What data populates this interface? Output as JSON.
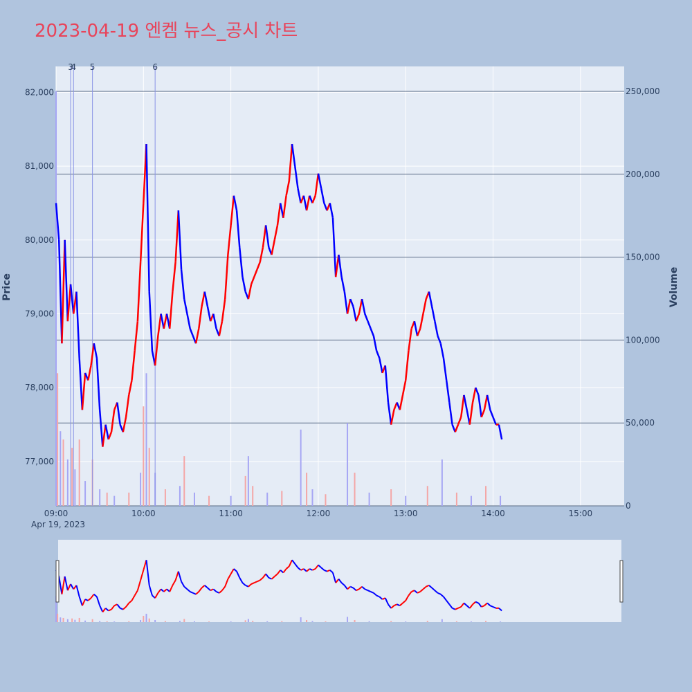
{
  "title": "2023-04-19 엔켐 뉴스_공시 차트",
  "colors": {
    "background": "#b0c4de",
    "plot_bg": "#e5ecf6",
    "up": "#ff0000",
    "down": "#0000ff",
    "title": "#e8445a",
    "volume_up": "#f4a6a6",
    "volume_down": "#a6a6f4"
  },
  "chart_data": {
    "type": "candlestick",
    "date_label": "Apr 19, 2023",
    "y_label": "Price",
    "y2_label": "Volume",
    "ylim": [
      76400,
      82350
    ],
    "y2lim": [
      0,
      265000
    ],
    "y_ticks": [
      77000,
      78000,
      79000,
      80000,
      81000,
      82000
    ],
    "y_tick_labels": [
      "77,000",
      "78,000",
      "79,000",
      "80,000",
      "81,000",
      "82,000"
    ],
    "y2_ticks": [
      0,
      50000,
      100000,
      150000,
      200000,
      250000
    ],
    "y2_tick_labels": [
      "0",
      "50,000",
      "100,000",
      "150,000",
      "200,000",
      "250,000"
    ],
    "x_ticks": [
      "09:00",
      "10:00",
      "11:00",
      "12:00",
      "13:00",
      "14:00",
      "15:00"
    ],
    "news_markers": [
      {
        "label": "3",
        "time": "09:10"
      },
      {
        "label": "4",
        "time": "09:12"
      },
      {
        "label": "5",
        "time": "09:25"
      },
      {
        "label": "6",
        "time": "10:08"
      }
    ],
    "price_path": [
      [
        "09:00",
        80500
      ],
      [
        "09:02",
        80000
      ],
      [
        "09:04",
        78600
      ],
      [
        "09:06",
        80000
      ],
      [
        "09:08",
        78900
      ],
      [
        "09:10",
        79400
      ],
      [
        "09:12",
        79000
      ],
      [
        "09:14",
        79300
      ],
      [
        "09:16",
        78400
      ],
      [
        "09:18",
        77700
      ],
      [
        "09:20",
        78200
      ],
      [
        "09:22",
        78100
      ],
      [
        "09:24",
        78300
      ],
      [
        "09:26",
        78600
      ],
      [
        "09:28",
        78400
      ],
      [
        "09:30",
        77700
      ],
      [
        "09:32",
        77200
      ],
      [
        "09:34",
        77500
      ],
      [
        "09:36",
        77300
      ],
      [
        "09:38",
        77400
      ],
      [
        "09:40",
        77700
      ],
      [
        "09:42",
        77800
      ],
      [
        "09:44",
        77500
      ],
      [
        "09:46",
        77400
      ],
      [
        "09:48",
        77600
      ],
      [
        "09:50",
        77900
      ],
      [
        "09:52",
        78100
      ],
      [
        "09:54",
        78500
      ],
      [
        "09:56",
        78900
      ],
      [
        "09:58",
        79700
      ],
      [
        "10:00",
        80500
      ],
      [
        "10:02",
        81300
      ],
      [
        "10:04",
        79300
      ],
      [
        "10:06",
        78500
      ],
      [
        "10:08",
        78300
      ],
      [
        "10:10",
        78700
      ],
      [
        "10:12",
        79000
      ],
      [
        "10:14",
        78800
      ],
      [
        "10:16",
        79000
      ],
      [
        "10:18",
        78800
      ],
      [
        "10:20",
        79300
      ],
      [
        "10:22",
        79700
      ],
      [
        "10:24",
        80400
      ],
      [
        "10:26",
        79600
      ],
      [
        "10:28",
        79200
      ],
      [
        "10:30",
        79000
      ],
      [
        "10:32",
        78800
      ],
      [
        "10:34",
        78700
      ],
      [
        "10:36",
        78600
      ],
      [
        "10:38",
        78800
      ],
      [
        "10:40",
        79100
      ],
      [
        "10:42",
        79300
      ],
      [
        "10:44",
        79100
      ],
      [
        "10:46",
        78900
      ],
      [
        "10:48",
        79000
      ],
      [
        "10:50",
        78800
      ],
      [
        "10:52",
        78700
      ],
      [
        "10:54",
        78900
      ],
      [
        "10:56",
        79200
      ],
      [
        "10:58",
        79800
      ],
      [
        "11:00",
        80200
      ],
      [
        "11:02",
        80600
      ],
      [
        "11:04",
        80400
      ],
      [
        "11:06",
        79900
      ],
      [
        "11:08",
        79500
      ],
      [
        "11:10",
        79300
      ],
      [
        "11:12",
        79200
      ],
      [
        "11:14",
        79400
      ],
      [
        "11:16",
        79500
      ],
      [
        "11:18",
        79600
      ],
      [
        "11:20",
        79700
      ],
      [
        "11:22",
        79900
      ],
      [
        "11:24",
        80200
      ],
      [
        "11:26",
        79900
      ],
      [
        "11:28",
        79800
      ],
      [
        "11:30",
        80000
      ],
      [
        "11:32",
        80200
      ],
      [
        "11:34",
        80500
      ],
      [
        "11:36",
        80300
      ],
      [
        "11:38",
        80600
      ],
      [
        "11:40",
        80800
      ],
      [
        "11:42",
        81300
      ],
      [
        "11:44",
        81000
      ],
      [
        "11:46",
        80700
      ],
      [
        "11:48",
        80500
      ],
      [
        "11:50",
        80600
      ],
      [
        "11:52",
        80400
      ],
      [
        "11:54",
        80600
      ],
      [
        "11:56",
        80500
      ],
      [
        "11:58",
        80600
      ],
      [
        "12:00",
        80900
      ],
      [
        "12:02",
        80700
      ],
      [
        "12:04",
        80500
      ],
      [
        "12:06",
        80400
      ],
      [
        "12:08",
        80500
      ],
      [
        "12:10",
        80300
      ],
      [
        "12:12",
        79500
      ],
      [
        "12:14",
        79800
      ],
      [
        "12:16",
        79500
      ],
      [
        "12:18",
        79300
      ],
      [
        "12:20",
        79000
      ],
      [
        "12:22",
        79200
      ],
      [
        "12:24",
        79100
      ],
      [
        "12:26",
        78900
      ],
      [
        "12:28",
        79000
      ],
      [
        "12:30",
        79200
      ],
      [
        "12:32",
        79000
      ],
      [
        "12:34",
        78900
      ],
      [
        "12:36",
        78800
      ],
      [
        "12:38",
        78700
      ],
      [
        "12:40",
        78500
      ],
      [
        "12:42",
        78400
      ],
      [
        "12:44",
        78200
      ],
      [
        "12:46",
        78300
      ],
      [
        "12:48",
        77800
      ],
      [
        "12:50",
        77500
      ],
      [
        "12:52",
        77700
      ],
      [
        "12:54",
        77800
      ],
      [
        "12:56",
        77700
      ],
      [
        "12:58",
        77900
      ],
      [
        "13:00",
        78100
      ],
      [
        "13:02",
        78500
      ],
      [
        "13:04",
        78800
      ],
      [
        "13:06",
        78900
      ],
      [
        "13:08",
        78700
      ],
      [
        "13:10",
        78800
      ],
      [
        "13:12",
        79000
      ],
      [
        "13:14",
        79200
      ],
      [
        "13:16",
        79300
      ],
      [
        "13:18",
        79100
      ],
      [
        "13:20",
        78900
      ],
      [
        "13:22",
        78700
      ],
      [
        "13:24",
        78600
      ],
      [
        "13:26",
        78400
      ],
      [
        "13:28",
        78100
      ],
      [
        "13:30",
        77800
      ],
      [
        "13:32",
        77500
      ],
      [
        "13:34",
        77400
      ],
      [
        "13:36",
        77500
      ],
      [
        "13:38",
        77600
      ],
      [
        "13:40",
        77900
      ],
      [
        "13:42",
        77700
      ],
      [
        "13:44",
        77500
      ],
      [
        "13:46",
        77800
      ],
      [
        "13:48",
        78000
      ],
      [
        "13:50",
        77900
      ],
      [
        "13:52",
        77600
      ],
      [
        "13:54",
        77700
      ],
      [
        "13:56",
        77900
      ],
      [
        "13:58",
        77700
      ],
      [
        "14:00",
        77600
      ],
      [
        "14:02",
        77500
      ],
      [
        "14:04",
        77500
      ],
      [
        "14:06",
        77300
      ]
    ],
    "volume_bars": [
      [
        "09:00",
        250000
      ],
      [
        "09:01",
        80000
      ],
      [
        "09:03",
        45000
      ],
      [
        "09:05",
        40000
      ],
      [
        "09:08",
        28000
      ],
      [
        "09:11",
        35000
      ],
      [
        "09:13",
        22000
      ],
      [
        "09:16",
        40000
      ],
      [
        "09:20",
        15000
      ],
      [
        "09:25",
        28000
      ],
      [
        "09:30",
        10000
      ],
      [
        "09:35",
        8000
      ],
      [
        "09:40",
        6000
      ],
      [
        "09:50",
        8000
      ],
      [
        "09:58",
        20000
      ],
      [
        "10:00",
        60000
      ],
      [
        "10:02",
        80000
      ],
      [
        "10:04",
        35000
      ],
      [
        "10:08",
        20000
      ],
      [
        "10:15",
        10000
      ],
      [
        "10:25",
        12000
      ],
      [
        "10:28",
        30000
      ],
      [
        "10:35",
        8000
      ],
      [
        "10:45",
        6000
      ],
      [
        "11:00",
        6000
      ],
      [
        "11:10",
        18000
      ],
      [
        "11:12",
        30000
      ],
      [
        "11:15",
        12000
      ],
      [
        "11:25",
        8000
      ],
      [
        "11:35",
        9000
      ],
      [
        "11:48",
        46000
      ],
      [
        "11:52",
        20000
      ],
      [
        "11:56",
        10000
      ],
      [
        "12:05",
        7000
      ],
      [
        "12:20",
        50000
      ],
      [
        "12:25",
        20000
      ],
      [
        "12:35",
        8000
      ],
      [
        "12:50",
        10000
      ],
      [
        "13:00",
        6000
      ],
      [
        "13:15",
        12000
      ],
      [
        "13:25",
        28000
      ],
      [
        "13:35",
        8000
      ],
      [
        "13:45",
        6000
      ],
      [
        "13:55",
        12000
      ],
      [
        "14:05",
        6000
      ]
    ]
  }
}
